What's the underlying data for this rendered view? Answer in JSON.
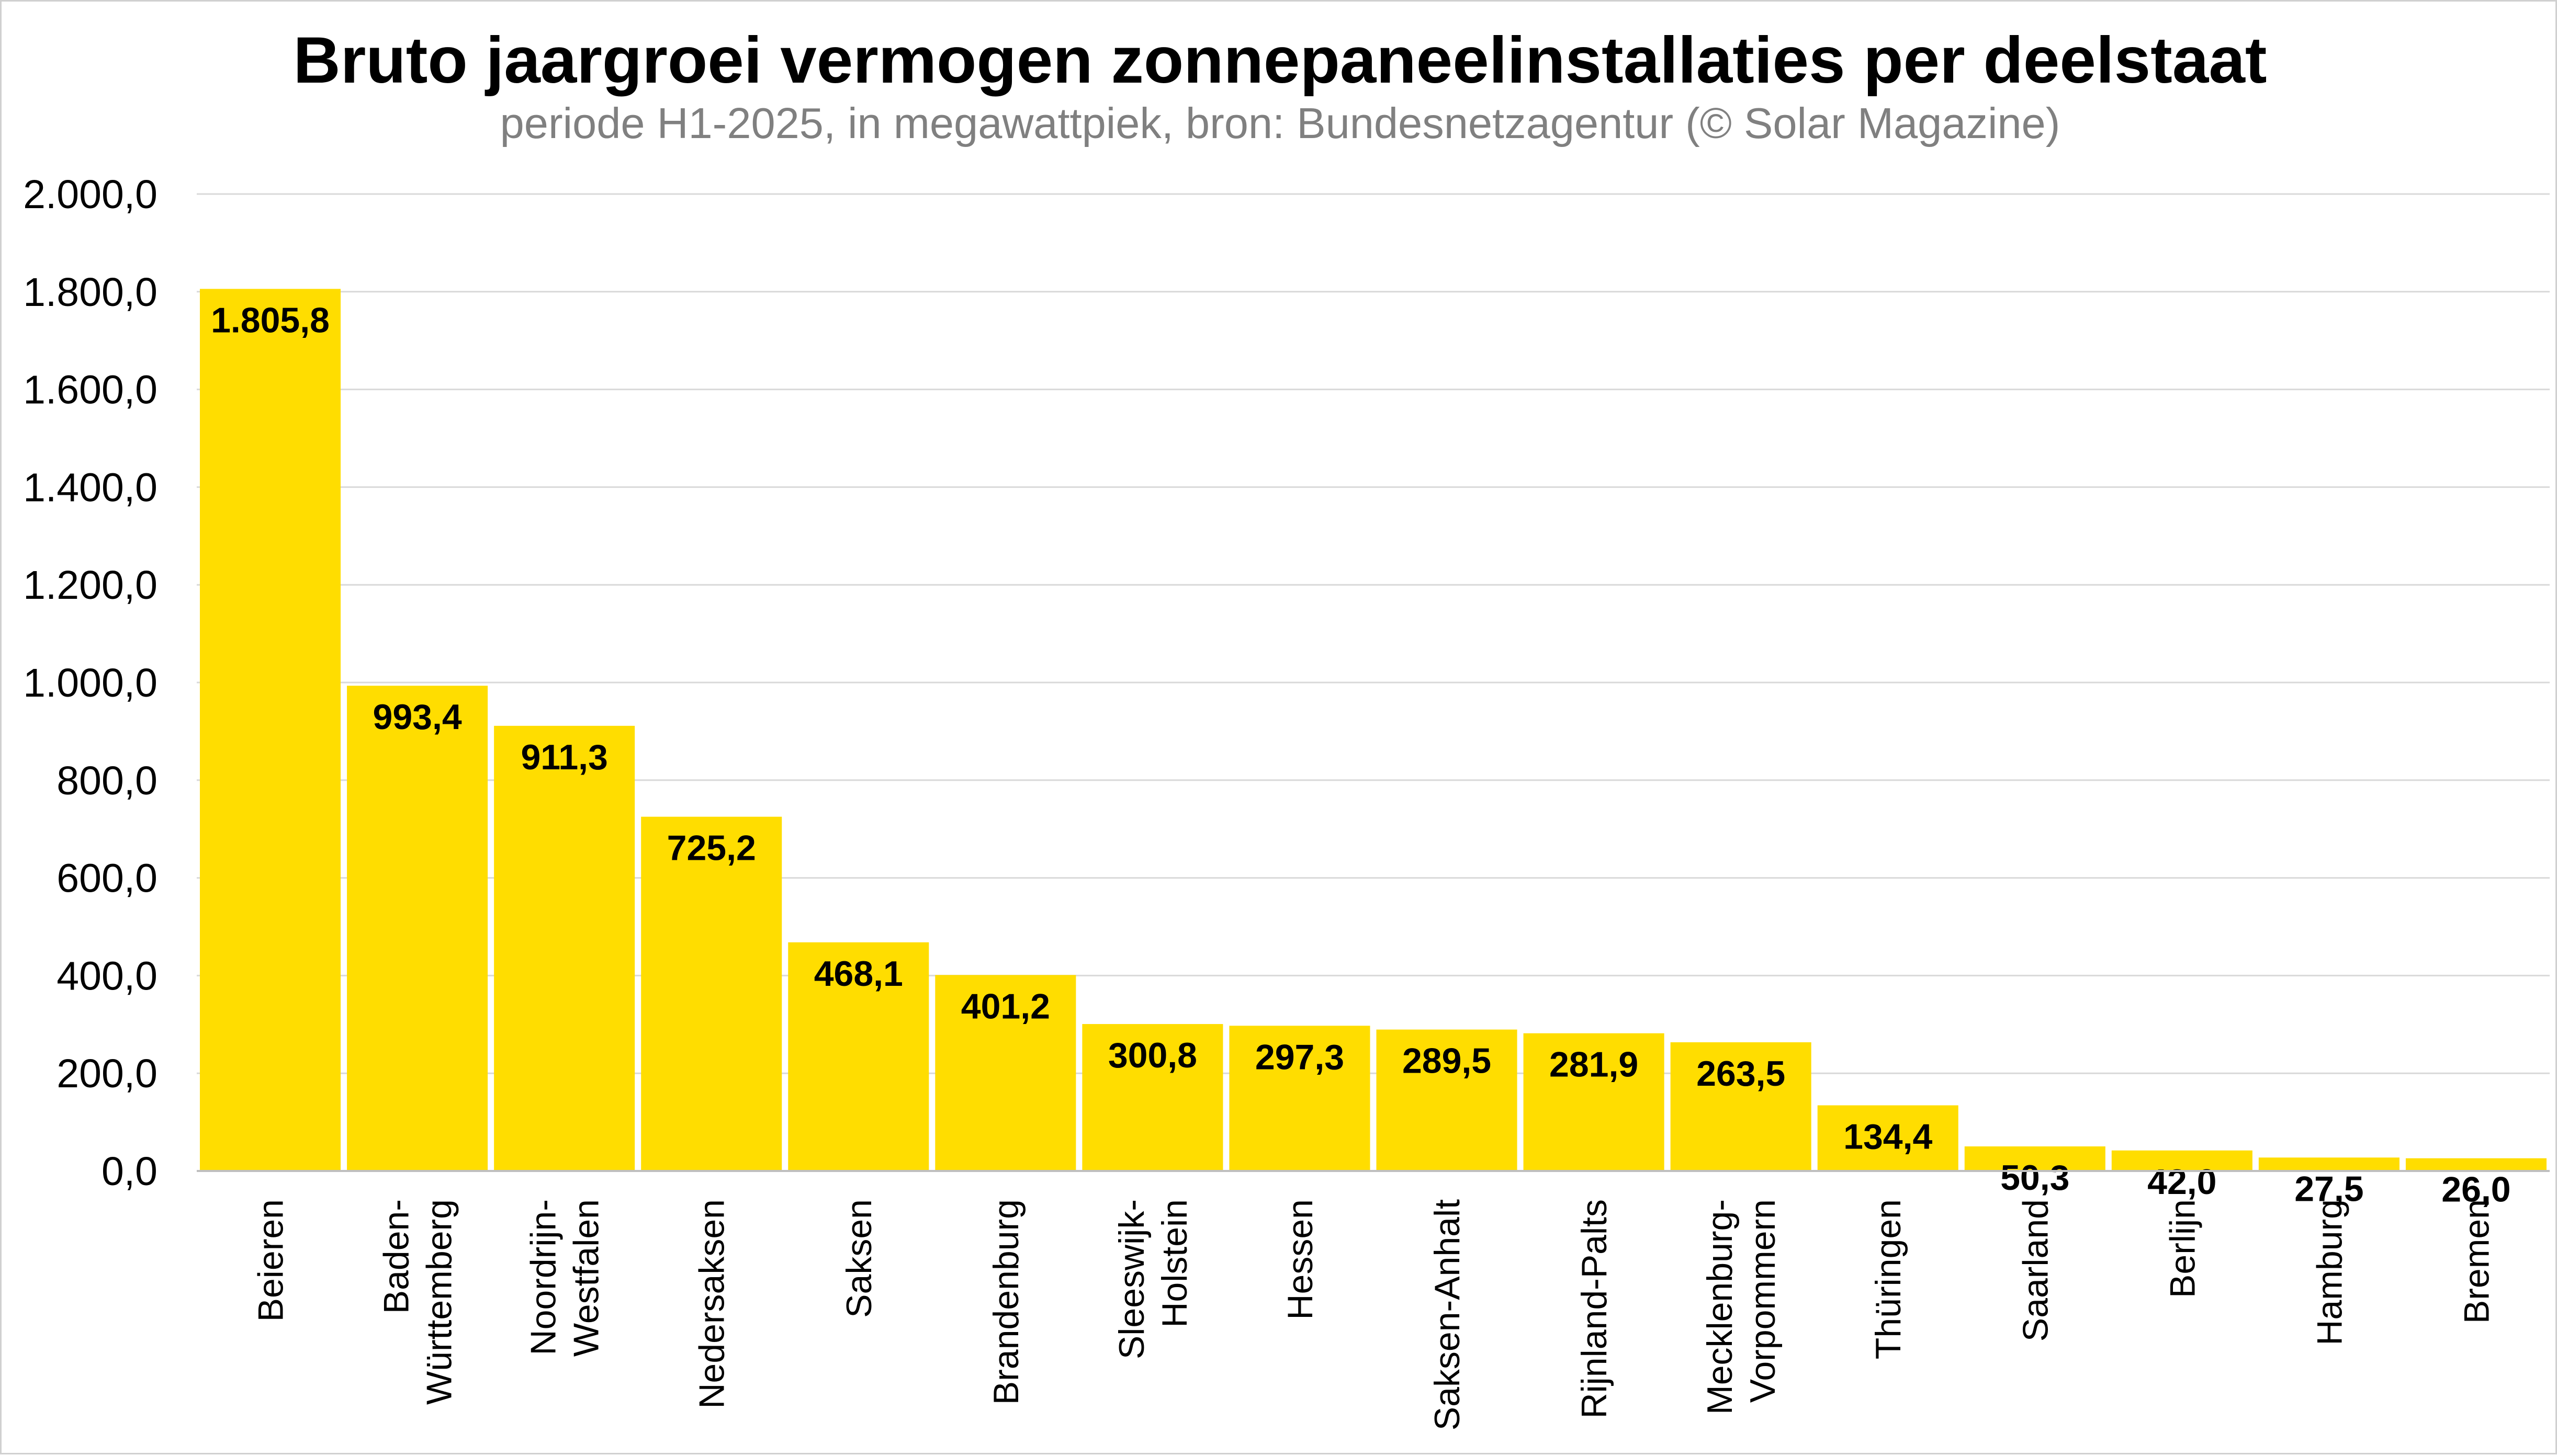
{
  "colors": {
    "bar": "#FFDD00",
    "grid": "#d9d9d9",
    "axis": "#bfbfbf",
    "title": "#000000",
    "subtitle": "#808080",
    "frame": "#d0d0d0"
  },
  "chart_data": {
    "type": "bar",
    "title": "Bruto jaargroei vermogen zonnepaneelinstallaties per deelstaat",
    "subtitle": "periode H1-2025, in megawattpiek, bron: Bundesnetzagentur (© Solar Magazine)",
    "xlabel": "",
    "ylabel": "",
    "ylim": [
      0,
      2000
    ],
    "grid": true,
    "legend": "none",
    "yticks": [
      "0,0",
      "200,0",
      "400,0",
      "600,0",
      "800,0",
      "1.000,0",
      "1.200,0",
      "1.400,0",
      "1.600,0",
      "1.800,0",
      "2.000,0"
    ],
    "categories": [
      [
        "Beieren"
      ],
      [
        "Baden-",
        "Württemberg"
      ],
      [
        "Noordrijn-",
        "Westfalen"
      ],
      [
        "Nedersaksen"
      ],
      [
        "Saksen"
      ],
      [
        "Brandenburg"
      ],
      [
        "Sleeswijk-",
        "Holstein"
      ],
      [
        "Hessen"
      ],
      [
        "Saksen-Anhalt"
      ],
      [
        "Rijnland-Palts"
      ],
      [
        "Mecklenburg-",
        "Vorpommern"
      ],
      [
        "Thüringen"
      ],
      [
        "Saarland"
      ],
      [
        "Berlijn"
      ],
      [
        "Hamburg"
      ],
      [
        "Bremen"
      ]
    ],
    "values": [
      1805.8,
      993.4,
      911.3,
      725.2,
      468.1,
      401.2,
      300.8,
      297.3,
      289.5,
      281.9,
      263.5,
      134.4,
      50.3,
      42.0,
      27.5,
      26.0
    ],
    "data_labels": [
      "1.805,8",
      "993,4",
      "911,3",
      "725,2",
      "468,1",
      "401,2",
      "300,8",
      "297,3",
      "289,5",
      "281,9",
      "263,5",
      "134,4",
      "50,3",
      "42,0",
      "27,5",
      "26,0"
    ]
  }
}
